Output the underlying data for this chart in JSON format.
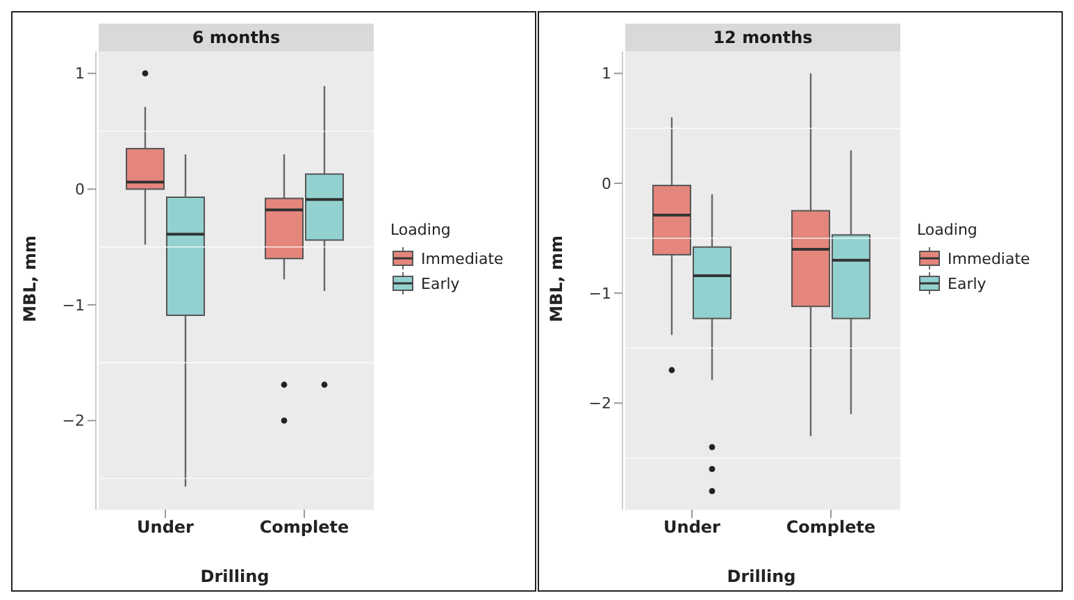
{
  "chart_data": [
    {
      "type": "box",
      "title": "6 months",
      "xlabel": "Drilling",
      "ylabel": "MBL, mm",
      "legend_title": "Loading",
      "legend": "right",
      "grid": true,
      "categories": [
        "Under",
        "Complete"
      ],
      "ylim": [
        -2.77,
        1.19
      ],
      "yticks": [
        -2,
        -1,
        0,
        1
      ],
      "series": [
        {
          "name": "Immediate",
          "color": "#e4867c",
          "boxes": [
            {
              "low": -0.48,
              "q1": 0,
              "median": 0.06,
              "q3": 0.35,
              "high": 0.71,
              "outliers": [
                1.0
              ]
            },
            {
              "low": -0.78,
              "q1": -0.6,
              "median": -0.18,
              "q3": -0.08,
              "high": 0.3,
              "outliers": [
                -1.69,
                -2.0
              ]
            }
          ]
        },
        {
          "name": "Early",
          "color": "#92d1d0",
          "boxes": [
            {
              "low": -2.57,
              "q1": -1.09,
              "median": -0.39,
              "q3": -0.07,
              "high": 0.3
            },
            {
              "low": -0.88,
              "q1": -0.44,
              "median": -0.09,
              "q3": 0.13,
              "high": 0.89,
              "outliers": [
                -1.69
              ]
            }
          ]
        }
      ]
    },
    {
      "type": "box",
      "title": "12 months",
      "xlabel": "Drilling",
      "ylabel": "MBL, mm",
      "legend_title": "Loading",
      "legend": "right",
      "grid": true,
      "categories": [
        "Under",
        "Complete"
      ],
      "ylim": [
        -2.97,
        1.2
      ],
      "yticks": [
        -2,
        -1,
        0,
        1
      ],
      "series": [
        {
          "name": "Immediate",
          "color": "#e4867c",
          "boxes": [
            {
              "low": -1.38,
              "q1": -0.65,
              "median": -0.29,
              "q3": -0.02,
              "high": 0.6,
              "outliers": [
                -1.7
              ]
            },
            {
              "low": -2.3,
              "q1": -1.12,
              "median": -0.6,
              "q3": -0.25,
              "high": 1.0
            }
          ]
        },
        {
          "name": "Early",
          "color": "#92d1d0",
          "boxes": [
            {
              "low": -1.79,
              "q1": -1.23,
              "median": -0.84,
              "q3": -0.58,
              "high": -0.1,
              "outliers": [
                -2.4,
                -2.6,
                -2.8
              ]
            },
            {
              "low": -2.1,
              "q1": -1.23,
              "median": -0.7,
              "q3": -0.47,
              "high": 0.3
            }
          ]
        }
      ]
    }
  ]
}
